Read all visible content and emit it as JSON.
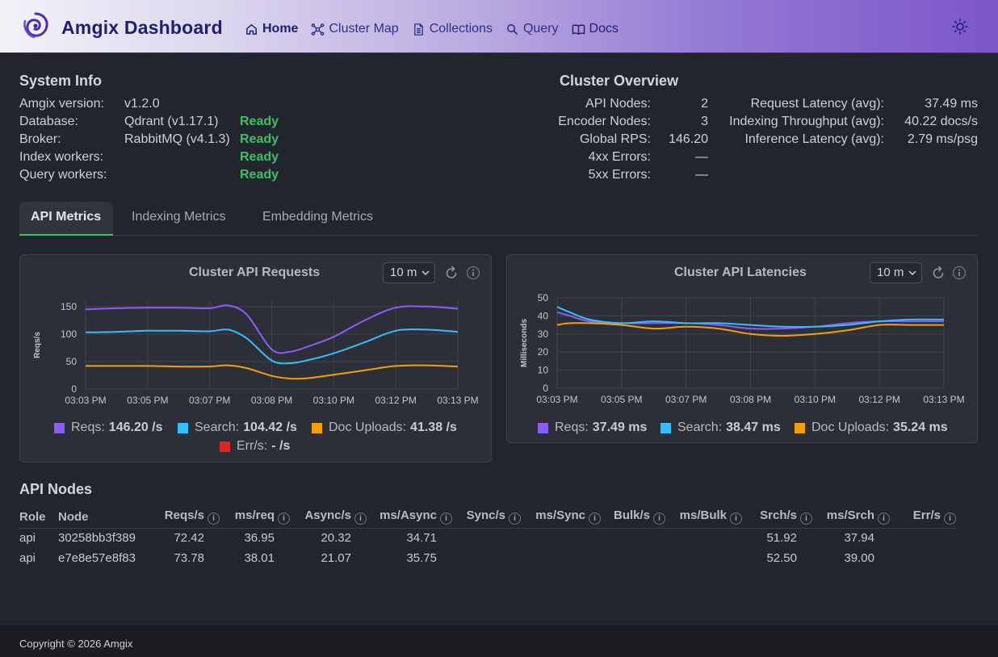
{
  "header": {
    "title": "Amgix Dashboard",
    "nav": [
      {
        "label": "Home",
        "icon": "home-icon",
        "active": true
      },
      {
        "label": "Cluster Map",
        "icon": "network-icon"
      },
      {
        "label": "Collections",
        "icon": "document-icon"
      },
      {
        "label": "Query",
        "icon": "search-icon"
      },
      {
        "label": "Docs",
        "icon": "book-icon"
      }
    ],
    "theme_icon": "sun-icon"
  },
  "system_info": {
    "title": "System Info",
    "rows": [
      {
        "label": "Amgix version:",
        "value": "v1.2.0",
        "status": ""
      },
      {
        "label": "Database:",
        "value": "Qdrant (v1.17.1)",
        "status": "Ready"
      },
      {
        "label": "Broker:",
        "value": "RabbitMQ (v4.1.3)",
        "status": "Ready"
      },
      {
        "label": "Index workers:",
        "value": "",
        "status": "Ready"
      },
      {
        "label": "Query workers:",
        "value": "",
        "status": "Ready"
      }
    ]
  },
  "cluster_overview": {
    "title": "Cluster Overview",
    "left": [
      {
        "label": "API Nodes:",
        "value": "2"
      },
      {
        "label": "Encoder Nodes:",
        "value": "3"
      },
      {
        "label": "Global RPS:",
        "value": "146.20"
      },
      {
        "label": "4xx Errors:",
        "value": "—"
      },
      {
        "label": "5xx Errors:",
        "value": "—"
      }
    ],
    "right": [
      {
        "label": "Request Latency (avg):",
        "value": "37.49 ms"
      },
      {
        "label": "Indexing Throughput (avg):",
        "value": "40.22 docs/s"
      },
      {
        "label": "Inference Latency (avg):",
        "value": "2.79 ms/psg"
      }
    ]
  },
  "tabs": [
    {
      "label": "API Metrics",
      "active": true
    },
    {
      "label": "Indexing Metrics"
    },
    {
      "label": "Embedding Metrics"
    }
  ],
  "colors": {
    "reqs": "#8b5cf6",
    "search": "#38bdf8",
    "uploads": "#f59e0b",
    "err": "#dc2626",
    "ready": "#3fbf66"
  },
  "panels": {
    "requests": {
      "title": "Cluster API Requests",
      "range": "10 m",
      "legend": [
        {
          "name": "Reqs:",
          "value": "146.20 /s"
        },
        {
          "name": "Search:",
          "value": "104.42 /s"
        },
        {
          "name": "Doc Uploads:",
          "value": "41.38 /s"
        },
        {
          "name": "Err/s:",
          "value": "- /s"
        }
      ]
    },
    "latencies": {
      "title": "Cluster API Latencies",
      "range": "10 m",
      "legend": [
        {
          "name": "Reqs:",
          "value": "37.49 ms"
        },
        {
          "name": "Search:",
          "value": "38.47 ms"
        },
        {
          "name": "Doc Uploads:",
          "value": "35.24 ms"
        }
      ]
    }
  },
  "chart_data": [
    {
      "type": "line",
      "title": "Cluster API Requests",
      "ylabel": "Reqs/s",
      "ylim": [
        0,
        160
      ],
      "yticks": [
        0,
        50,
        100,
        150
      ],
      "xticks": [
        "03:03 PM",
        "03:05 PM",
        "03:07 PM",
        "03:08 PM",
        "03:10 PM",
        "03:12 PM",
        "03:13 PM"
      ],
      "x": [
        0,
        0.5,
        1,
        1.5,
        2,
        2.3,
        2.6,
        3,
        3.3,
        3.6,
        4,
        4.5,
        5,
        5.5,
        6
      ],
      "series": [
        {
          "name": "Reqs",
          "values": [
            145,
            147,
            148,
            148,
            147,
            152,
            135,
            72,
            68,
            78,
            95,
            125,
            148,
            150,
            146
          ]
        },
        {
          "name": "Search",
          "values": [
            103,
            104,
            106,
            106,
            105,
            108,
            92,
            52,
            47,
            53,
            65,
            85,
            106,
            108,
            104
          ]
        },
        {
          "name": "Doc Uploads",
          "values": [
            42,
            42,
            42,
            41,
            41,
            43,
            38,
            24,
            19,
            20,
            26,
            34,
            42,
            43,
            41
          ]
        }
      ],
      "legend": "bottom"
    },
    {
      "type": "line",
      "title": "Cluster API Latencies",
      "ylabel": "Milliseconds",
      "ylim": [
        0,
        50
      ],
      "yticks": [
        0,
        10,
        20,
        30,
        40,
        50
      ],
      "xticks": [
        "03:03 PM",
        "03:05 PM",
        "03:07 PM",
        "03:08 PM",
        "03:10 PM",
        "03:12 PM",
        "03:13 PM"
      ],
      "x": [
        0,
        0.2,
        0.5,
        1,
        1.5,
        2,
        2.5,
        3,
        3.5,
        4,
        4.5,
        5,
        5.5,
        6
      ],
      "series": [
        {
          "name": "Reqs",
          "values": [
            42,
            40,
            37,
            36,
            36,
            36,
            35,
            33,
            33,
            34,
            36,
            37,
            37,
            37
          ]
        },
        {
          "name": "Search",
          "values": [
            45,
            42,
            38,
            36,
            37,
            36,
            36,
            35,
            34,
            34,
            35,
            37,
            38,
            38
          ]
        },
        {
          "name": "Doc Uploads",
          "values": [
            35,
            36,
            36,
            35,
            33,
            34,
            33,
            30,
            29,
            30,
            32,
            35,
            35,
            35
          ]
        }
      ],
      "legend": "bottom"
    }
  ],
  "api_nodes": {
    "title": "API Nodes",
    "columns": [
      "Role",
      "Node",
      "Reqs/s",
      "ms/req",
      "Async/s",
      "ms/Async",
      "Sync/s",
      "ms/Sync",
      "Bulk/s",
      "ms/Bulk",
      "Srch/s",
      "ms/Srch",
      "Err/s"
    ],
    "rows": [
      [
        "api",
        "30258bb3f389",
        "72.42",
        "36.95",
        "20.32",
        "34.71",
        "",
        "",
        "",
        "",
        "51.92",
        "37.94",
        ""
      ],
      [
        "api",
        "e7e8e57e8f83",
        "73.78",
        "38.01",
        "21.07",
        "35.75",
        "",
        "",
        "",
        "",
        "52.50",
        "39.00",
        ""
      ]
    ]
  },
  "footer": {
    "text": "Copyright © 2026 Amgix"
  }
}
